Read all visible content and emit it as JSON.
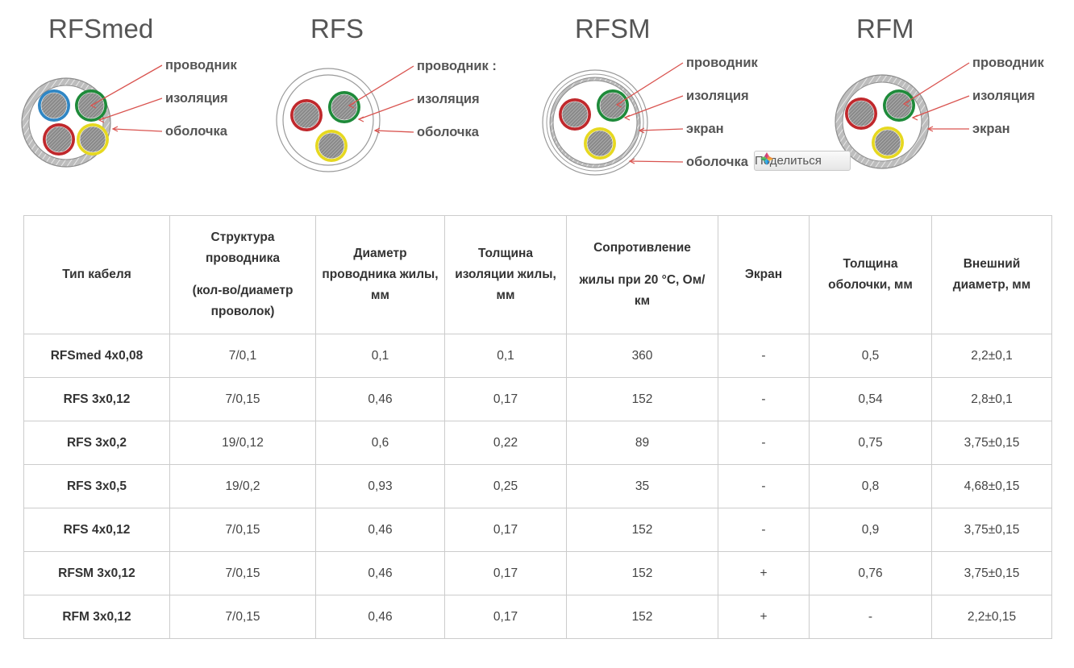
{
  "diagrams": [
    {
      "title": "RFSmed",
      "labels": [
        "проводник",
        "изоляция",
        "оболочка"
      ],
      "cores": [
        "#2f86c4",
        "#1e8a3a",
        "#c0282c",
        "#e6d820"
      ],
      "shield": false
    },
    {
      "title": "RFS",
      "labels": [
        "проводник :",
        "изоляция",
        "оболочка"
      ],
      "cores": [
        "#c0282c",
        "#1e8a3a",
        "#e6d820"
      ],
      "shield": false
    },
    {
      "title": "RFSM",
      "labels": [
        "проводник",
        "изоляция",
        "экран",
        "оболочка"
      ],
      "cores": [
        "#c0282c",
        "#1e8a3a",
        "#e6d820"
      ],
      "shield": true
    },
    {
      "title": "RFM",
      "labels": [
        "проводник",
        "изоляция",
        "экран"
      ],
      "cores": [
        "#c0282c",
        "#1e8a3a",
        "#e6d820"
      ],
      "shield": true
    }
  ],
  "share_button": {
    "label": "Поделиться",
    "icon": "share-icon"
  },
  "colors": {
    "pointer_line": "#d9534f",
    "label_text": "#555555",
    "table_border": "#cccccc"
  },
  "table": {
    "headers": [
      {
        "lines": [
          "Тип кабеля"
        ]
      },
      {
        "lines": [
          "Структура проводника"
        ],
        "sub": [
          "(кол-во/диаметр проволок)"
        ]
      },
      {
        "lines": [
          "Диаметр проводника жилы, мм"
        ]
      },
      {
        "lines": [
          "Толщина изоляции жилы, мм"
        ]
      },
      {
        "lines": [
          "Сопротивление"
        ],
        "sub": [
          "жилы при 20 °С, Ом/км"
        ]
      },
      {
        "lines": [
          "Экран"
        ]
      },
      {
        "lines": [
          "Толщина оболочки, мм"
        ]
      },
      {
        "lines": [
          "Внешний диаметр, мм"
        ]
      }
    ],
    "rows": [
      [
        "RFSmed 4x0,08",
        "7/0,1",
        "0,1",
        "0,1",
        "360",
        "-",
        "0,5",
        "2,2±0,1"
      ],
      [
        "RFS 3x0,12",
        "7/0,15",
        "0,46",
        "0,17",
        "152",
        "-",
        "0,54",
        "2,8±0,1"
      ],
      [
        "RFS 3x0,2",
        "19/0,12",
        "0,6",
        "0,22",
        "89",
        "-",
        "0,75",
        "3,75±0,15"
      ],
      [
        "RFS 3x0,5",
        "19/0,2",
        "0,93",
        "0,25",
        "35",
        "-",
        "0,8",
        "4,68±0,15"
      ],
      [
        "RFS 4x0,12",
        "7/0,15",
        "0,46",
        "0,17",
        "152",
        "-",
        "0,9",
        "3,75±0,15"
      ],
      [
        "RFSM 3x0,12",
        "7/0,15",
        "0,46",
        "0,17",
        "152",
        "+",
        "0,76",
        "3,75±0,15"
      ],
      [
        "RFM 3x0,12",
        "7/0,15",
        "0,46",
        "0,17",
        "152",
        "+",
        "-",
        "2,2±0,15"
      ]
    ]
  }
}
